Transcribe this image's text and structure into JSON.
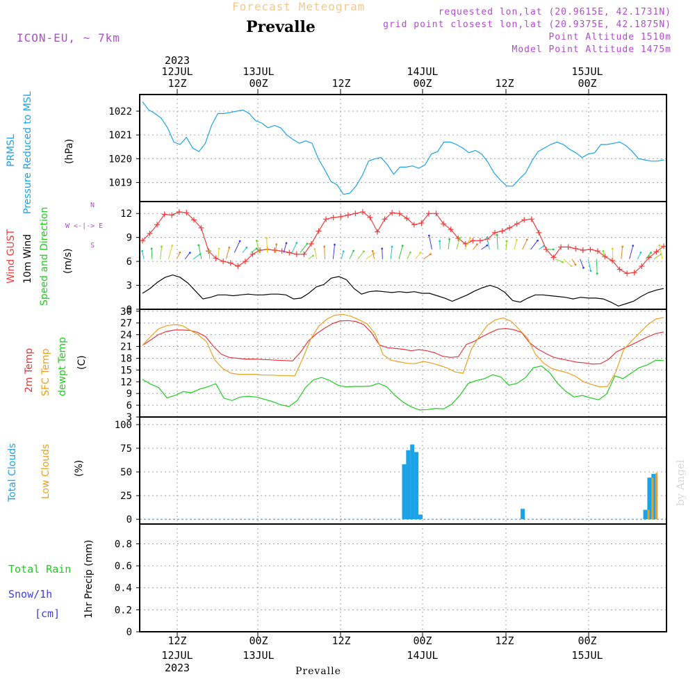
{
  "header": {
    "subtitle": "Forecast Meteogram",
    "title": "Prevalle",
    "model": "ICON-EU, ~ 7km",
    "info_lines": [
      "requested lon,lat (20.9615E, 42.1731N)",
      "grid point closest lon,lat (20.9375E, 42.1875N)",
      "Point Altitude 1510m",
      "Model Point Altitude 1475m"
    ]
  },
  "time_axis": {
    "top_year": "2023",
    "top_labels": [
      {
        "day": "12JUL",
        "hour": "12Z"
      },
      {
        "day": "13JUL",
        "hour": "00Z"
      },
      {
        "day": "",
        "hour": "12Z"
      },
      {
        "day": "14JUL",
        "hour": "00Z"
      },
      {
        "day": "",
        "hour": "12Z"
      },
      {
        "day": "15JUL",
        "hour": "00Z"
      }
    ],
    "bottom_labels": [
      {
        "hour": "12Z",
        "day": "12JUL",
        "year": "2023"
      },
      {
        "hour": "00Z",
        "day": "13JUL",
        "year": ""
      },
      {
        "hour": "12Z",
        "day": "",
        "year": ""
      },
      {
        "hour": "00Z",
        "day": "14JUL",
        "year": ""
      },
      {
        "hour": "12Z",
        "day": "",
        "year": ""
      },
      {
        "hour": "00Z",
        "day": "15JUL",
        "year": ""
      }
    ],
    "bottom_site": "Prevalle"
  },
  "panels": {
    "pressure": {
      "label1": "PRMSL",
      "label2": "Pressure Reduced to MSL",
      "unit": "(hPa)"
    },
    "wind": {
      "label_gust": "Wind GUST",
      "label_wind": "10m Wind",
      "label_speed": "Speed and Direction",
      "unit": "(m/s)",
      "compass": [
        "N",
        "W <-|-> E",
        "S"
      ]
    },
    "temp": {
      "label_2m": "2m Temp",
      "label_sfc": "SFC Temp",
      "label_dew": "dewpt Temp",
      "unit": "(C)"
    },
    "clouds": {
      "label_total": "Total Clouds",
      "label_low": "Low Clouds",
      "unit": "(%)"
    },
    "precip": {
      "label_rain": "Total  Rain",
      "label_snow": "Snow/1h",
      "label_snow_unit": "[cm]",
      "unit": "1hr Precip (mm)"
    }
  },
  "watermark": "by Angel",
  "colors": {
    "pressure": "#1aa3e8",
    "gust": "#f03c3c",
    "wind": "#000000",
    "temp2m": "#e8353c",
    "sfc": "#e8a020",
    "dew": "#1fcc1f",
    "total_clouds": "#1aa3e8",
    "low_clouds": "#e8a020",
    "rain": "#1fcc1f",
    "snow": "#3c3cf0",
    "compass": "#b04ad0"
  },
  "chart_data": [
    {
      "type": "line",
      "name": "pressure",
      "x": [
        0,
        1,
        2,
        3,
        4,
        5,
        6,
        7,
        8,
        9,
        10,
        11,
        12,
        13,
        14,
        15,
        16,
        17,
        18,
        19,
        20,
        21,
        22,
        23,
        24,
        25,
        26,
        27,
        28,
        29,
        30,
        31,
        32,
        33,
        34,
        35,
        36,
        37,
        38,
        39,
        40,
        41,
        42,
        43,
        44,
        45,
        46,
        47,
        48,
        49,
        50,
        51,
        52,
        53,
        54,
        55,
        56,
        57,
        58,
        59,
        60,
        61,
        62,
        63,
        64,
        65,
        66,
        67,
        68,
        69,
        70,
        71,
        72,
        73,
        74,
        75,
        76,
        77,
        78,
        79,
        80,
        81,
        82,
        83,
        84,
        85,
        86,
        87,
        88,
        89,
        90,
        91,
        92,
        93,
        94,
        95,
        96,
        97,
        98,
        99,
        100,
        101,
        102,
        103,
        104,
        105,
        106,
        107,
        108,
        109,
        110,
        111,
        112,
        113,
        114,
        115,
        116,
        117,
        118,
        119,
        120,
        121,
        122,
        123,
        124,
        125,
        126,
        127,
        128
      ],
      "series": [
        {
          "name": "PRMSL",
          "values": [
            1022.4,
            1022.05,
            1021.9,
            1021.7,
            1021.3,
            1020.7,
            1020.6,
            1020.9,
            1020.45,
            1020.3,
            1020.65,
            1021.4,
            1021.9,
            1021.9,
            1021.95,
            1022,
            1022.05,
            1021.9,
            1021.6,
            1021.5,
            1021.3,
            1021.4,
            1021.3,
            1021,
            1020.8,
            1020.65,
            1020.75,
            1020.65,
            1020,
            1019.55,
            1019.05,
            1018.9,
            1018.5,
            1018.55,
            1018.85,
            1019.3,
            1019.9,
            1020,
            1020.05,
            1019.75,
            1019.35,
            1019.65,
            1019.65,
            1019.7,
            1019.6,
            1019.75,
            1020.2,
            1020.3,
            1020.7,
            1020.7,
            1020.6,
            1020.45,
            1020.25,
            1020.35,
            1020.2,
            1019.85,
            1019.4,
            1019.1,
            1018.85,
            1018.85,
            1019.15,
            1019.4,
            1019.9,
            1020.3,
            1020.45,
            1020.6,
            1020.7,
            1020.6,
            1020.4,
            1020.25,
            1020.05,
            1020.2,
            1020.25,
            1020.6,
            1020.6,
            1020.65,
            1020.7,
            1020.55,
            1020.3,
            1020.0,
            1019.95,
            1019.9,
            1019.9,
            1019.95,
            1020,
            1020,
            1020,
            1020,
            1020,
            1020,
            1020,
            1020,
            1020,
            1020,
            1020,
            1020,
            1020,
            1020,
            1020,
            1020,
            1020,
            1020,
            1020,
            1020,
            1020,
            1020,
            1020,
            1020,
            1020,
            1020,
            1020,
            1020,
            1020,
            1020,
            1020,
            1020,
            1020,
            1020,
            1020,
            1020,
            1020,
            1020,
            1020,
            1020,
            1020,
            1020,
            1020,
            1020,
            1020
          ]
        }
      ],
      "ylabel": "(hPa)",
      "yticks": [
        1019,
        1020,
        1021,
        1022
      ],
      "ylim": [
        1018.2,
        1022.7
      ],
      "grid": true
    },
    {
      "type": "line",
      "name": "wind",
      "series": [
        {
          "name": "Wind GUST",
          "values": [
            8.6,
            9.5,
            10.6,
            11.9,
            11.8,
            12.2,
            12.1,
            11.2,
            10.2,
            7.3,
            6.4,
            6.0,
            5.8,
            5.4,
            6.0,
            6.9,
            7.4,
            7.5,
            7.4,
            7.3,
            7.1,
            6.9,
            6.9,
            8.2,
            9.8,
            11.3,
            11.5,
            11.6,
            11.8,
            12.0,
            12.2,
            11.5,
            9.7,
            11.3,
            12.1,
            12.0,
            11.4,
            10.6,
            10.8,
            12.0,
            12.0,
            10.7,
            10.0,
            8.9,
            8.2,
            8.6,
            8.6,
            8.8,
            9.6,
            9.8,
            10.2,
            10.7,
            11.2,
            11.3,
            9.6,
            7.5,
            6.5,
            7.8,
            7.8,
            7.6,
            7.4,
            7.5,
            7.3,
            6.6,
            6.1,
            5.0,
            4.5,
            4.6,
            5.4,
            6.5,
            7.2,
            7.9
          ]
        },
        {
          "name": "10m Wind",
          "values": [
            2.0,
            2.6,
            3.4,
            4.0,
            4.3,
            4.0,
            3.3,
            2.3,
            1.3,
            1.5,
            1.8,
            1.8,
            1.7,
            1.8,
            1.9,
            1.8,
            1.8,
            1.9,
            1.9,
            1.8,
            1.3,
            1.4,
            2.0,
            2.8,
            3.1,
            3.9,
            4.1,
            3.7,
            2.6,
            1.9,
            2.2,
            2.3,
            2.2,
            2.1,
            2.2,
            2.1,
            2.2,
            2.0,
            2.0,
            1.7,
            1.4,
            1.0,
            1.4,
            1.8,
            2.3,
            2.7,
            3.0,
            2.7,
            2.1,
            1.1,
            0.9,
            1.4,
            1.8,
            1.8,
            1.7,
            1.6,
            1.5,
            1.3,
            1.5,
            1.4,
            1.4,
            1.3,
            0.9,
            0.4,
            0.7,
            1.0,
            1.6,
            2.1,
            2.4,
            2.6
          ]
        }
      ],
      "ylabel": "(m/s)",
      "yticks": [
        0,
        3,
        6,
        9,
        12
      ],
      "ylim": [
        0,
        13.5
      ],
      "grid": true
    },
    {
      "type": "line",
      "name": "temperature",
      "series": [
        {
          "name": "2m Temp",
          "values": [
            21.3,
            22.6,
            24,
            24.8,
            25.2,
            25.2,
            25.1,
            24.6,
            23.5,
            21,
            19,
            18.2,
            18,
            17.8,
            17.8,
            17.7,
            17.6,
            17.5,
            17.4,
            17.3,
            19.5,
            22.4,
            24.2,
            25.6,
            26.8,
            27.5,
            27.6,
            27.4,
            26.6,
            24.5,
            21.4,
            20.7,
            20.5,
            20.3,
            19.9,
            20.2,
            19.9,
            19.4,
            18.5,
            18.2,
            18.4,
            21.5,
            22.3,
            23.5,
            24.5,
            25.4,
            25.6,
            25.3,
            24.6,
            22,
            20.4,
            19.3,
            18.3,
            17.8,
            17.4,
            17,
            16.8,
            16.5,
            16.6,
            17.7,
            19.6,
            20.6,
            21.5,
            22.5,
            23.5,
            24.3,
            24.7
          ]
        },
        {
          "name": "SFC Temp",
          "values": [
            21.3,
            23.5,
            25.5,
            26.3,
            26.6,
            26.3,
            25.1,
            23.9,
            22.2,
            17.6,
            15.4,
            14.2,
            13.9,
            13.9,
            13.9,
            13.7,
            13.7,
            13.6,
            13.6,
            13.5,
            18,
            23,
            26.2,
            28,
            29,
            29.2,
            28.7,
            27.8,
            26.8,
            24.3,
            18.9,
            17.5,
            17.1,
            16.7,
            16.6,
            17.2,
            16.8,
            16.2,
            15.5,
            14.5,
            14.2,
            20.3,
            23.6,
            26.4,
            27.8,
            28.3,
            27.4,
            25.3,
            23.2,
            19,
            16.8,
            15.4,
            14.8,
            14.3,
            13.4,
            12,
            11.3,
            10.7,
            10.8,
            14.4,
            20.2,
            22.4,
            24.5,
            26.5,
            28,
            28.4
          ]
        },
        {
          "name": "dewpt Temp",
          "values": [
            12.6,
            11.4,
            10.5,
            7.9,
            8.5,
            9.5,
            9.2,
            10.1,
            10.7,
            11.5,
            7.8,
            7.2,
            8.1,
            8.3,
            8.1,
            7.5,
            6.9,
            6.1,
            5.7,
            7.2,
            10.5,
            12.5,
            13.1,
            12.3,
            11.1,
            10.7,
            10.8,
            10.8,
            10.9,
            11.6,
            10.7,
            8.5,
            6.8,
            5.6,
            4.8,
            4.9,
            5.2,
            5.1,
            6.3,
            8.6,
            11.6,
            12.3,
            12.8,
            13.8,
            13.2,
            11.1,
            11.6,
            13,
            15.6,
            16,
            14.3,
            11.5,
            9.5,
            8.1,
            8.5,
            7.9,
            7.4,
            8.9,
            13.5,
            12.8,
            14.2,
            15.6,
            16.3,
            17.5,
            17.4
          ]
        }
      ],
      "ylabel": "(C)",
      "yticks": [
        3,
        6,
        9,
        12,
        15,
        18,
        21,
        24,
        27,
        30
      ],
      "ylim": [
        3,
        30.5
      ],
      "grid": true
    },
    {
      "type": "bar",
      "name": "clouds",
      "series": [
        {
          "name": "Total Clouds",
          "values": [
            {
              "x": 64,
              "v": 58
            },
            {
              "x": 65,
              "v": 73
            },
            {
              "x": 66,
              "v": 79
            },
            {
              "x": 67,
              "v": 71
            },
            {
              "x": 68,
              "v": 5
            },
            {
              "x": 93,
              "v": 11
            },
            {
              "x": 123,
              "v": 10
            },
            {
              "x": 124,
              "v": 44
            },
            {
              "x": 125,
              "v": 48
            }
          ]
        },
        {
          "name": "Low Clouds",
          "values": [
            {
              "x": 123,
              "v": 10
            },
            {
              "x": 124,
              "v": 44
            },
            {
              "x": 125,
              "v": 49
            }
          ]
        }
      ],
      "ylabel": "(%)",
      "yticks": [
        0,
        25,
        50,
        75,
        100
      ],
      "ylim": [
        -5,
        108
      ],
      "grid": true
    },
    {
      "type": "bar",
      "name": "precip",
      "series": [
        {
          "name": "Total Rain",
          "values": []
        },
        {
          "name": "Snow/1h",
          "values": []
        }
      ],
      "ylabel": "1hr Precip (mm)",
      "yticks": [
        0,
        0.2,
        0.4,
        0.6,
        0.8
      ],
      "yticklabels": [
        "0",
        "0.2",
        "0.4",
        "0.6",
        "0.8"
      ],
      "ylim": [
        0,
        0.98
      ],
      "grid": true
    }
  ]
}
